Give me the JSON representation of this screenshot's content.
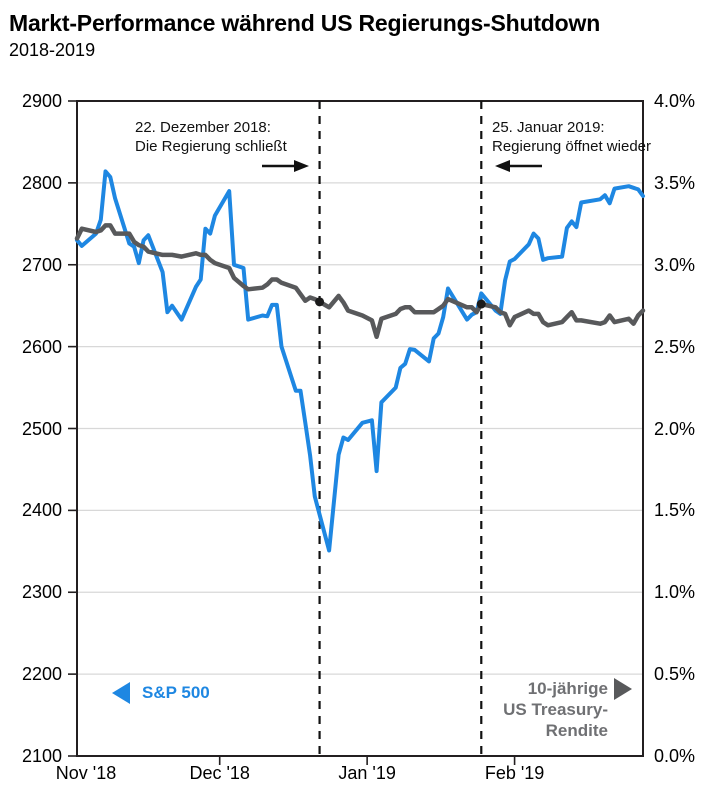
{
  "header": {
    "title": "Markt-Performance während US Regierungs-Shutdown",
    "subtitle": "2018-2019"
  },
  "colors": {
    "sp500": "#1e87e2",
    "treasury_line": "#58595b",
    "treasury_legend_text": "#6f7073",
    "annotation": "#111111",
    "axis": "#231f20",
    "grid": "#d8d8d8"
  },
  "chart_data": {
    "type": "line",
    "title": "Markt-Performance während US Regierungs-Shutdown",
    "subtitle": "2018-2019",
    "grid": true,
    "x_axis": {
      "range": [
        "2018-11-01",
        "2019-02-28"
      ],
      "ticks": [
        {
          "date": "2018-11-01",
          "label": "Nov '18"
        },
        {
          "date": "2018-12-01",
          "label": "Dec '18"
        },
        {
          "date": "2019-01-01",
          "label": "Jan '19"
        },
        {
          "date": "2019-02-01",
          "label": "Feb '19"
        }
      ]
    },
    "left_axis": {
      "series": "S&P 500",
      "min": 2100,
      "max": 2900,
      "tick_step": 100,
      "tick_labels": [
        "2900",
        "2800",
        "2700",
        "2600",
        "2500",
        "2400",
        "2300",
        "2200",
        "2100"
      ]
    },
    "right_axis": {
      "series": "10-jährige US Treasury-Rendite",
      "min": 0.0,
      "max": 4.0,
      "tick_step": 0.5,
      "tick_labels": [
        "4.0%",
        "3.5%",
        "3.0%",
        "2.5%",
        "2.0%",
        "1.5%",
        "1.0%",
        "0.5%",
        "0.0%"
      ]
    },
    "series": [
      {
        "name": "S&P 500",
        "axis": "left",
        "color": "#1e87e2",
        "width": 4,
        "points": [
          [
            "2018-11-01",
            2730
          ],
          [
            "2018-11-02",
            2723
          ],
          [
            "2018-11-05",
            2738
          ],
          [
            "2018-11-06",
            2755
          ],
          [
            "2018-11-07",
            2814
          ],
          [
            "2018-11-08",
            2807
          ],
          [
            "2018-11-09",
            2781
          ],
          [
            "2018-11-12",
            2726
          ],
          [
            "2018-11-13",
            2722
          ],
          [
            "2018-11-14",
            2702
          ],
          [
            "2018-11-15",
            2730
          ],
          [
            "2018-11-16",
            2736
          ],
          [
            "2018-11-19",
            2691
          ],
          [
            "2018-11-20",
            2642
          ],
          [
            "2018-11-21",
            2650
          ],
          [
            "2018-11-23",
            2633
          ],
          [
            "2018-11-26",
            2673
          ],
          [
            "2018-11-27",
            2682
          ],
          [
            "2018-11-28",
            2744
          ],
          [
            "2018-11-29",
            2738
          ],
          [
            "2018-11-30",
            2760
          ],
          [
            "2018-12-03",
            2790
          ],
          [
            "2018-12-04",
            2700
          ],
          [
            "2018-12-06",
            2696
          ],
          [
            "2018-12-07",
            2633
          ],
          [
            "2018-12-10",
            2638
          ],
          [
            "2018-12-11",
            2637
          ],
          [
            "2018-12-12",
            2651
          ],
          [
            "2018-12-13",
            2651
          ],
          [
            "2018-12-14",
            2600
          ],
          [
            "2018-12-17",
            2546
          ],
          [
            "2018-12-18",
            2546
          ],
          [
            "2018-12-19",
            2507
          ],
          [
            "2018-12-20",
            2467
          ],
          [
            "2018-12-21",
            2417
          ],
          [
            "2018-12-24",
            2351
          ],
          [
            "2018-12-26",
            2468
          ],
          [
            "2018-12-27",
            2489
          ],
          [
            "2018-12-28",
            2486
          ],
          [
            "2018-12-31",
            2507
          ],
          [
            "2019-01-02",
            2510
          ],
          [
            "2019-01-03",
            2448
          ],
          [
            "2019-01-04",
            2532
          ],
          [
            "2019-01-07",
            2550
          ],
          [
            "2019-01-08",
            2574
          ],
          [
            "2019-01-09",
            2579
          ],
          [
            "2019-01-10",
            2597
          ],
          [
            "2019-01-11",
            2596
          ],
          [
            "2019-01-14",
            2582
          ],
          [
            "2019-01-15",
            2610
          ],
          [
            "2019-01-16",
            2616
          ],
          [
            "2019-01-17",
            2636
          ],
          [
            "2019-01-18",
            2671
          ],
          [
            "2019-01-22",
            2633
          ],
          [
            "2019-01-23",
            2639
          ],
          [
            "2019-01-24",
            2642
          ],
          [
            "2019-01-25",
            2665
          ],
          [
            "2019-01-28",
            2644
          ],
          [
            "2019-01-29",
            2640
          ],
          [
            "2019-01-30",
            2681
          ],
          [
            "2019-01-31",
            2704
          ],
          [
            "2019-02-01",
            2707
          ],
          [
            "2019-02-04",
            2725
          ],
          [
            "2019-02-05",
            2738
          ],
          [
            "2019-02-06",
            2732
          ],
          [
            "2019-02-07",
            2706
          ],
          [
            "2019-02-08",
            2708
          ],
          [
            "2019-02-11",
            2710
          ],
          [
            "2019-02-12",
            2745
          ],
          [
            "2019-02-13",
            2753
          ],
          [
            "2019-02-14",
            2746
          ],
          [
            "2019-02-15",
            2776
          ],
          [
            "2019-02-19",
            2780
          ],
          [
            "2019-02-20",
            2785
          ],
          [
            "2019-02-21",
            2775
          ],
          [
            "2019-02-22",
            2793
          ],
          [
            "2019-02-25",
            2796
          ],
          [
            "2019-02-26",
            2794
          ],
          [
            "2019-02-27",
            2792
          ],
          [
            "2019-02-28",
            2784
          ]
        ]
      },
      {
        "name": "10-jährige US Treasury-Rendite",
        "axis": "right",
        "color": "#58595b",
        "width": 4.5,
        "points": [
          [
            "2018-11-01",
            3.16
          ],
          [
            "2018-11-02",
            3.22
          ],
          [
            "2018-11-05",
            3.2
          ],
          [
            "2018-11-06",
            3.21
          ],
          [
            "2018-11-07",
            3.24
          ],
          [
            "2018-11-08",
            3.24
          ],
          [
            "2018-11-09",
            3.19
          ],
          [
            "2018-11-12",
            3.19
          ],
          [
            "2018-11-13",
            3.14
          ],
          [
            "2018-11-14",
            3.12
          ],
          [
            "2018-11-15",
            3.11
          ],
          [
            "2018-11-16",
            3.08
          ],
          [
            "2018-11-19",
            3.06
          ],
          [
            "2018-11-20",
            3.06
          ],
          [
            "2018-11-21",
            3.06
          ],
          [
            "2018-11-23",
            3.05
          ],
          [
            "2018-11-26",
            3.07
          ],
          [
            "2018-11-27",
            3.06
          ],
          [
            "2018-11-28",
            3.06
          ],
          [
            "2018-11-29",
            3.03
          ],
          [
            "2018-11-30",
            3.01
          ],
          [
            "2018-12-03",
            2.98
          ],
          [
            "2018-12-04",
            2.92
          ],
          [
            "2018-12-06",
            2.87
          ],
          [
            "2018-12-07",
            2.85
          ],
          [
            "2018-12-10",
            2.86
          ],
          [
            "2018-12-11",
            2.88
          ],
          [
            "2018-12-12",
            2.91
          ],
          [
            "2018-12-13",
            2.91
          ],
          [
            "2018-12-14",
            2.89
          ],
          [
            "2018-12-17",
            2.86
          ],
          [
            "2018-12-18",
            2.82
          ],
          [
            "2018-12-19",
            2.78
          ],
          [
            "2018-12-20",
            2.8
          ],
          [
            "2018-12-21",
            2.79
          ],
          [
            "2018-12-24",
            2.74
          ],
          [
            "2018-12-26",
            2.81
          ],
          [
            "2018-12-27",
            2.77
          ],
          [
            "2018-12-28",
            2.72
          ],
          [
            "2018-12-31",
            2.69
          ],
          [
            "2019-01-02",
            2.66
          ],
          [
            "2019-01-03",
            2.56
          ],
          [
            "2019-01-04",
            2.67
          ],
          [
            "2019-01-07",
            2.7
          ],
          [
            "2019-01-08",
            2.73
          ],
          [
            "2019-01-09",
            2.74
          ],
          [
            "2019-01-10",
            2.74
          ],
          [
            "2019-01-11",
            2.71
          ],
          [
            "2019-01-14",
            2.71
          ],
          [
            "2019-01-15",
            2.71
          ],
          [
            "2019-01-16",
            2.73
          ],
          [
            "2019-01-17",
            2.75
          ],
          [
            "2019-01-18",
            2.79
          ],
          [
            "2019-01-22",
            2.74
          ],
          [
            "2019-01-23",
            2.74
          ],
          [
            "2019-01-24",
            2.71
          ],
          [
            "2019-01-25",
            2.76
          ],
          [
            "2019-01-28",
            2.74
          ],
          [
            "2019-01-29",
            2.71
          ],
          [
            "2019-01-30",
            2.7
          ],
          [
            "2019-01-31",
            2.63
          ],
          [
            "2019-02-01",
            2.68
          ],
          [
            "2019-02-04",
            2.72
          ],
          [
            "2019-02-05",
            2.7
          ],
          [
            "2019-02-06",
            2.7
          ],
          [
            "2019-02-07",
            2.65
          ],
          [
            "2019-02-08",
            2.63
          ],
          [
            "2019-02-11",
            2.65
          ],
          [
            "2019-02-12",
            2.68
          ],
          [
            "2019-02-13",
            2.71
          ],
          [
            "2019-02-14",
            2.66
          ],
          [
            "2019-02-15",
            2.66
          ],
          [
            "2019-02-19",
            2.64
          ],
          [
            "2019-02-20",
            2.65
          ],
          [
            "2019-02-21",
            2.69
          ],
          [
            "2019-02-22",
            2.65
          ],
          [
            "2019-02-25",
            2.67
          ],
          [
            "2019-02-26",
            2.64
          ],
          [
            "2019-02-27",
            2.69
          ],
          [
            "2019-02-28",
            2.72
          ]
        ]
      }
    ],
    "event_lines": [
      {
        "date": "2018-12-22",
        "label_lines": [
          "22. Dezember 2018:",
          "Die Regierung schließt"
        ],
        "arrow": "right",
        "dot_series": 1
      },
      {
        "date": "2019-01-25",
        "label_lines": [
          "25. Januar 2019:",
          "Regierung öffnet wieder"
        ],
        "arrow": "left",
        "dot_series": 1
      }
    ],
    "legends": [
      {
        "text": "S&P 500",
        "color": "#1e87e2",
        "pointer": "left"
      },
      {
        "text_lines": [
          "10-jährige",
          "US Treasury-",
          "Rendite"
        ],
        "color": "#6f7073",
        "pointer": "right"
      }
    ]
  }
}
